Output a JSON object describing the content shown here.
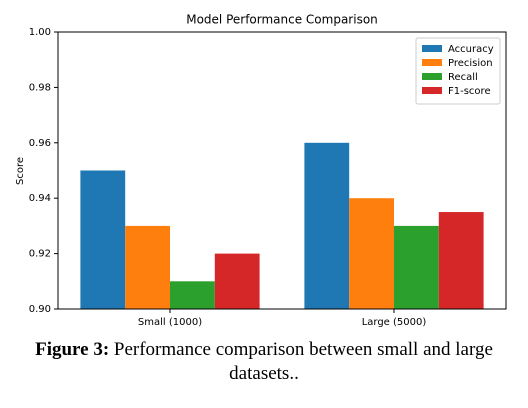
{
  "chart_data": {
    "type": "bar",
    "title": "Model Performance Comparison",
    "ylabel": "Score",
    "categories": [
      "Small (1000)",
      "Large (5000)"
    ],
    "series": [
      {
        "name": "Accuracy",
        "color": "#1f77b4",
        "values": [
          0.95,
          0.96
        ]
      },
      {
        "name": "Precision",
        "color": "#ff7f0e",
        "values": [
          0.93,
          0.94
        ]
      },
      {
        "name": "Recall",
        "color": "#2ca02c",
        "values": [
          0.91,
          0.93
        ]
      },
      {
        "name": "F1-score",
        "color": "#d62728",
        "values": [
          0.92,
          0.935
        ]
      }
    ],
    "ylim": [
      0.9,
      1.0
    ],
    "yticks": [
      {
        "value": 0.9,
        "label": "0.90"
      },
      {
        "value": 0.92,
        "label": "0.92"
      },
      {
        "value": 0.94,
        "label": "0.94"
      },
      {
        "value": 0.96,
        "label": "0.96"
      },
      {
        "value": 0.98,
        "label": "0.98"
      },
      {
        "value": 1.0,
        "label": "1.00"
      }
    ],
    "grid": false,
    "legend": "upper right"
  },
  "caption": {
    "label": "Figure 3:",
    "text": " Performance comparison between small and large datasets.."
  }
}
